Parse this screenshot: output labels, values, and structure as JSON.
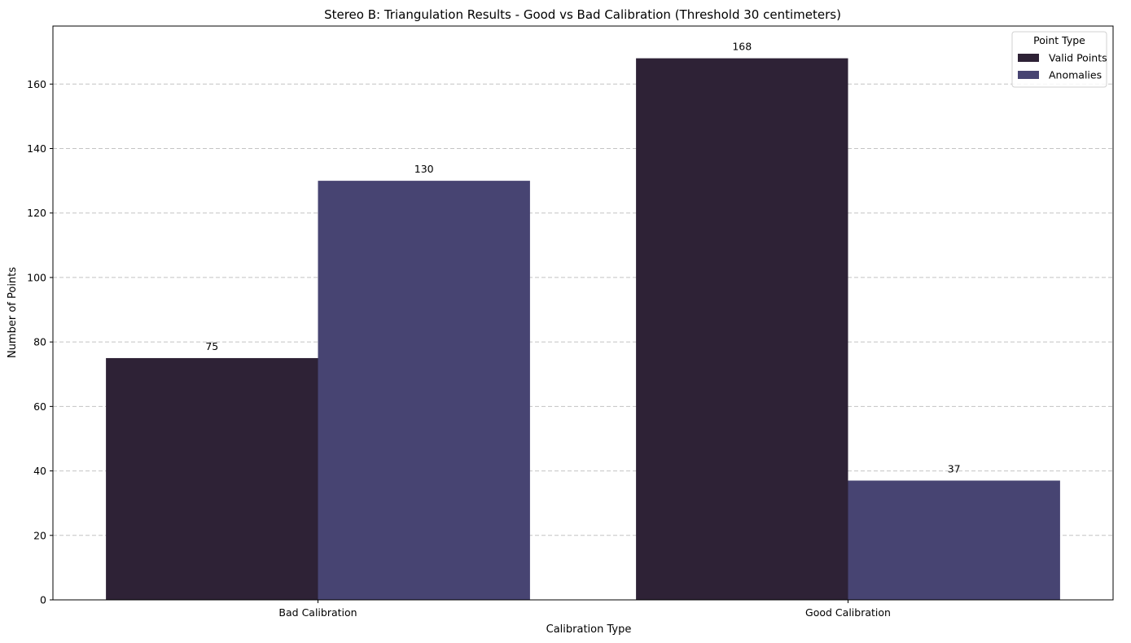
{
  "chart_data": {
    "type": "bar",
    "title": "Stereo B: Triangulation Results - Good vs Bad Calibration (Threshold 30 centimeters)",
    "xlabel": "Calibration Type",
    "ylabel": "Number of Points",
    "categories": [
      "Bad Calibration",
      "Good Calibration"
    ],
    "series": [
      {
        "name": "Valid Points",
        "values": [
          75,
          168
        ],
        "color": "#2e2236"
      },
      {
        "name": "Anomalies",
        "values": [
          130,
          37
        ],
        "color": "#474472"
      }
    ],
    "ylim": [
      0,
      178
    ],
    "yticks": [
      0,
      20,
      40,
      60,
      80,
      100,
      120,
      140,
      160
    ],
    "grid": "horizontal dashed",
    "legend": {
      "title": "Point Type",
      "placement": "top-right"
    }
  }
}
